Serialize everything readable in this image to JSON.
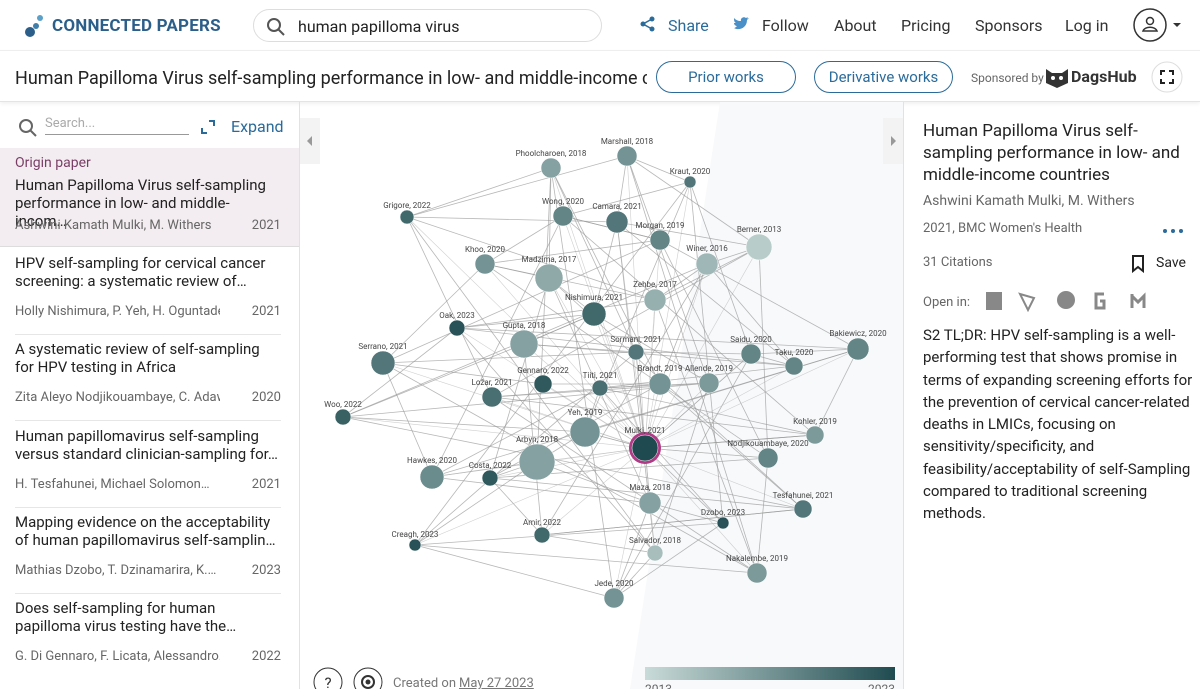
{
  "header": {
    "brand": "CONNECTED PAPERS",
    "search": "human papilloma virus",
    "nav": [
      "Share",
      "Follow",
      "About",
      "Pricing",
      "Sponsors",
      "Log in"
    ]
  },
  "subheader": {
    "title": "Human Papilloma Virus self-sampling performance in low- and middle-income coun…",
    "prior": "Prior works",
    "derivative": "Derivative works",
    "sponsored": "Sponsored by",
    "sponsor": "DagsHub"
  },
  "sidebar": {
    "search_placeholder": "Search...",
    "expand": "Expand",
    "origin_label": "Origin paper",
    "origin": {
      "title": "Human Papilloma Virus self-sampling performance in low- and middle-incom…",
      "authors": "Ashwini Kamath Mulki, M. Withers",
      "year": 2021
    },
    "items": [
      {
        "title": "HPV self-sampling for cervical cancer screening: a systematic review of…",
        "authors": "Holly Nishimura, P. Yeh, H. Oguntade, C.…",
        "year": 2021
      },
      {
        "title": "A systematic review of self-sampling for HPV testing in Africa",
        "authors": "Zita Aleyo Nodjikouambaye, C. Adaway…",
        "year": 2020
      },
      {
        "title": "Human papillomavirus self-sampling versus standard clinician-sampling for…",
        "authors": "H. Tesfahunei, Michael Solomon…",
        "year": 2021
      },
      {
        "title": "Mapping evidence on the acceptability of human papillomavirus self-samplin…",
        "authors": "Mathias Dzobo, T. Dzinamarira, K.…",
        "year": 2023
      },
      {
        "title": "Does self-sampling for human papilloma virus testing have the…",
        "authors": "G. Di Gennaro, F. Licata, Alessandro…",
        "year": 2022
      }
    ]
  },
  "graph": {
    "nodes": [
      "Marshall, 2018",
      "Phoolcharoen, 2018",
      "Kraut, 2020",
      "Grigore, 2022",
      "Wong, 2020",
      "Camara, 2021",
      "Morgan, 2019",
      "Berner, 2013",
      "Khoo, 2020",
      "Winer, 2016",
      "Madzima, 2017",
      "Zehbe, 2017",
      "Nishimura, 2021",
      "Oak, 2023",
      "Gupta, 2018",
      "Bakiewicz, 2020",
      "Sormani, 2021",
      "Saidu, 2020",
      "Serrano, 2021",
      "Taku, 2020",
      "Gennaro, 2022",
      "Tiiti, 2021",
      "Brandt, 2019",
      "Allende, 2019",
      "Ložar, 2021",
      "Woo, 2022",
      "Kohler, 2019",
      "Yeh, 2019",
      "Mulki, 2021",
      "Arbyn, 2018",
      "Nodjikouambaye, 2020",
      "Hawkes, 2020",
      "Costa, 2022",
      "Maza, 2018",
      "Tesfahunei, 2021",
      "Dzobo, 2023",
      "Amir, 2022",
      "Creagh, 2023",
      "Salvador, 2018",
      "Nakalembe, 2019",
      "Jede, 2020"
    ],
    "created_prefix": "Created on",
    "created_date": "May 27 2023",
    "scale_start": "2013",
    "scale_end": "2023"
  },
  "details": {
    "title": "Human Papilloma Virus self-sampling performance in low- and middle-income countries",
    "authors": "Ashwini Kamath Mulki, M. Withers",
    "venue": "2021, BMC Women's Health",
    "citations": "31 Citations",
    "save": "Save",
    "open_in": "Open in:",
    "tldr": "S2 TL;DR: HPV self-sampling is a well-performing test that shows promise in terms of expanding screening efforts for the prevention of cervical cancer-related deaths in LMICs, focusing on sensitivity/specificity, and feasibility/acceptability of self-Sampling compared to traditional screening methods."
  }
}
